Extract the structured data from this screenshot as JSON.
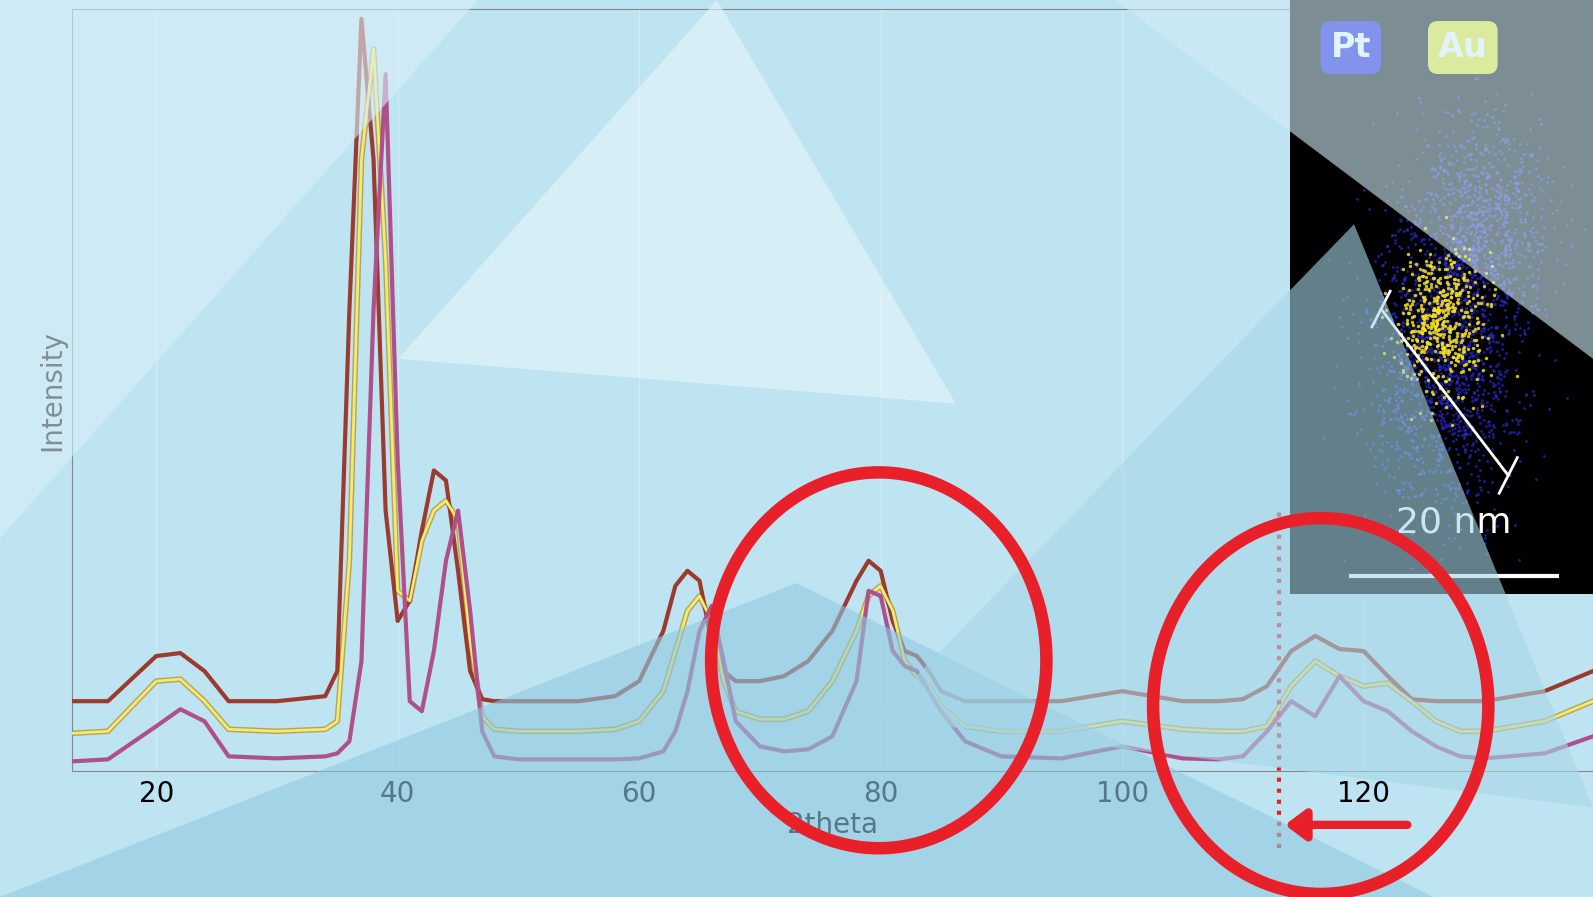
{
  "chart_data": {
    "type": "line",
    "x_label": "2theta",
    "y_label": "Intensity",
    "x": [
      13,
      16,
      20,
      22,
      24,
      26,
      30,
      34,
      35,
      36,
      37,
      38,
      39,
      40,
      41,
      42,
      43,
      44,
      45,
      46,
      47,
      48,
      50,
      55,
      58,
      60,
      62,
      63,
      64,
      65,
      66,
      67,
      68,
      70,
      72,
      74,
      76,
      78,
      79,
      80,
      81,
      82,
      83,
      84,
      85,
      87,
      90,
      95,
      100,
      105,
      108,
      110,
      112,
      114,
      116,
      118,
      120,
      122,
      124,
      126,
      128,
      130,
      135,
      139
    ],
    "series": [
      {
        "color": "#9b3a2e",
        "values": [
          60,
          60,
          105,
          108,
          90,
          60,
          60,
          65,
          90,
          450,
          740,
          600,
          250,
          140,
          160,
          230,
          290,
          280,
          190,
          90,
          62,
          60,
          60,
          60,
          65,
          80,
          130,
          175,
          190,
          180,
          120,
          90,
          80,
          80,
          85,
          100,
          130,
          180,
          200,
          190,
          140,
          110,
          105,
          90,
          70,
          60,
          60,
          60,
          70,
          60,
          60,
          62,
          75,
          110,
          125,
          112,
          110,
          85,
          62,
          60,
          60,
          60,
          70,
          90
        ]
      },
      {
        "color": "#f0ec6e",
        "values": [
          28,
          30,
          80,
          82,
          60,
          32,
          30,
          32,
          40,
          200,
          600,
          710,
          500,
          170,
          160,
          220,
          250,
          260,
          240,
          120,
          45,
          32,
          30,
          30,
          32,
          40,
          70,
          110,
          150,
          165,
          140,
          80,
          50,
          42,
          42,
          50,
          80,
          130,
          165,
          175,
          150,
          100,
          85,
          75,
          55,
          35,
          30,
          30,
          40,
          32,
          30,
          30,
          35,
          75,
          100,
          85,
          75,
          78,
          60,
          40,
          30,
          30,
          40,
          60
        ]
      },
      {
        "color": "#b0508a",
        "values": [
          0,
          2,
          35,
          52,
          40,
          5,
          3,
          5,
          8,
          20,
          100,
          450,
          685,
          300,
          60,
          50,
          110,
          200,
          250,
          150,
          30,
          5,
          2,
          2,
          2,
          3,
          10,
          30,
          70,
          130,
          155,
          100,
          40,
          15,
          10,
          12,
          25,
          80,
          170,
          165,
          110,
          95,
          90,
          70,
          50,
          20,
          5,
          3,
          15,
          3,
          2,
          5,
          30,
          60,
          45,
          85,
          60,
          50,
          30,
          15,
          5,
          3,
          8,
          25
        ]
      }
    ],
    "xlim": [
      13,
      139
    ],
    "ylim": [
      -10,
      750
    ],
    "xticks": [
      20,
      40,
      60,
      80,
      100,
      120
    ],
    "tick_labels": "x",
    "reference_line": 113,
    "annotations": [
      "Pt",
      "Au",
      "20 nm"
    ]
  }
}
